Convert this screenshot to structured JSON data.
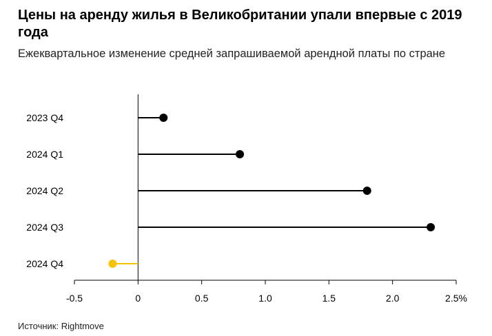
{
  "title": "Цены на аренду жилья в Великобритании упали впервые с 2019 года",
  "subtitle": "Ежеквартальное изменение средней запрашиваемой арендной платы по стране",
  "source": "Источник: Rightmove",
  "colors": {
    "default": "#000000",
    "highlight": "#f5c400",
    "axis": "#000000"
  },
  "chart_data": {
    "type": "lollipop",
    "orientation": "horizontal",
    "categories": [
      "2023 Q4",
      "2024 Q1",
      "2024 Q2",
      "2024 Q3",
      "2024 Q4"
    ],
    "values": [
      0.2,
      0.8,
      1.8,
      2.3,
      -0.2
    ],
    "highlight_index": 4,
    "xlim": [
      -0.5,
      2.5
    ],
    "xticks": [
      -0.5,
      0,
      0.5,
      1.0,
      1.5,
      2.0,
      2.5
    ],
    "xtick_labels": [
      "-0.5",
      "0",
      "0.5",
      "1.0",
      "1.5",
      "2.0",
      "2.5%"
    ],
    "grid": false
  }
}
